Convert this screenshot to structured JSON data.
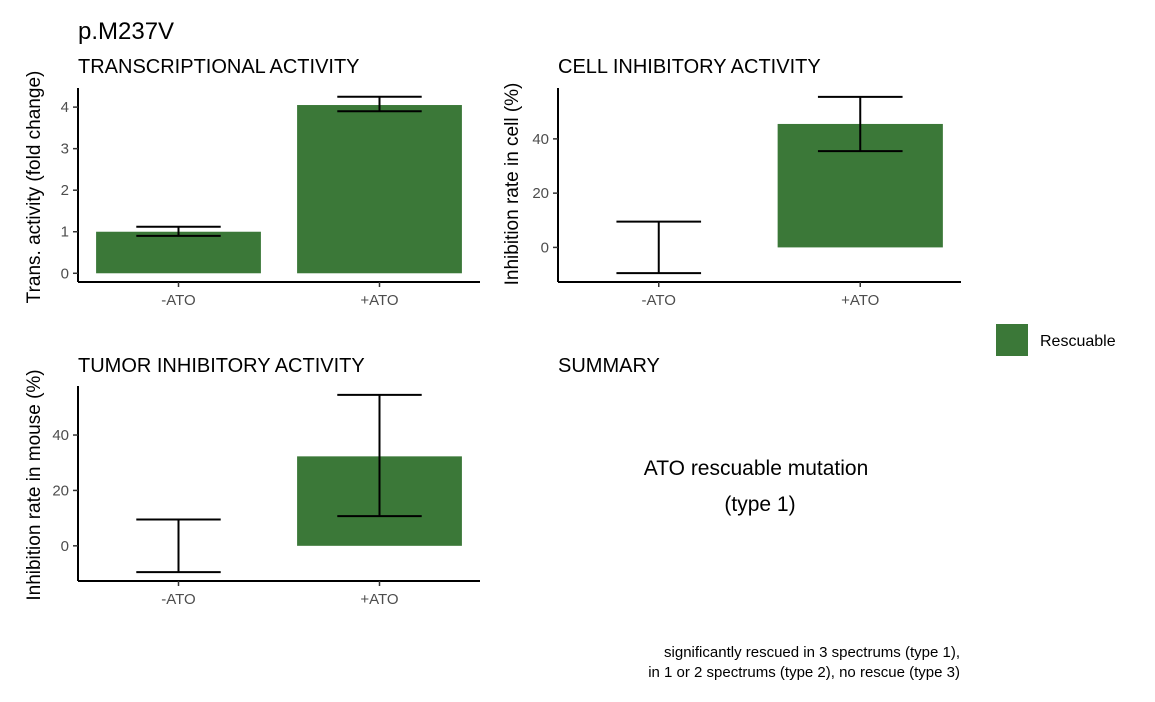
{
  "figure": {
    "title": "p.M237V",
    "bar_color": "#3b7838",
    "legend": {
      "label": "Rescuable",
      "color": "#3b7838"
    }
  },
  "chart_data": [
    {
      "type": "bar",
      "title": "TRANSCRIPTIONAL ACTIVITY",
      "xlabel": "",
      "ylabel": "Trans. activity (fold change)",
      "categories": [
        "-ATO",
        "+ATO"
      ],
      "values": [
        1.0,
        4.05
      ],
      "error_low": [
        0.9,
        3.9
      ],
      "error_high": [
        1.12,
        4.25
      ],
      "ylim": [
        -0.21,
        4.46
      ],
      "yticks": [
        0,
        1,
        2,
        3,
        4
      ],
      "grid": false
    },
    {
      "type": "bar",
      "title": "CELL INHIBITORY ACTIVITY",
      "xlabel": "",
      "ylabel": "Inhibition rate in cell (%)",
      "categories": [
        "-ATO",
        "+ATO"
      ],
      "values": [
        0,
        45.5
      ],
      "error_low": [
        -9.5,
        35.5
      ],
      "error_high": [
        9.5,
        55.5
      ],
      "ylim": [
        -12.75,
        58.75
      ],
      "yticks": [
        0,
        20,
        40
      ],
      "grid": false
    },
    {
      "type": "bar",
      "title": "TUMOR INHIBITORY ACTIVITY",
      "xlabel": "",
      "ylabel": "Inhibition rate in mouse (%)",
      "categories": [
        "-ATO",
        "+ATO"
      ],
      "values": [
        0,
        32.3
      ],
      "error_low": [
        -9.5,
        10.7
      ],
      "error_high": [
        9.5,
        54.5
      ],
      "ylim": [
        -12.7,
        57.7
      ],
      "yticks": [
        0,
        20,
        40
      ],
      "grid": false
    }
  ],
  "summary": {
    "title": "SUMMARY",
    "line1": "ATO rescuable mutation",
    "line2": "(type 1)",
    "note_line1": "significantly rescued in 3 spectrums (type 1),",
    "note_line2": "in 1 or 2 spectrums (type 2), no rescue (type 3)"
  }
}
